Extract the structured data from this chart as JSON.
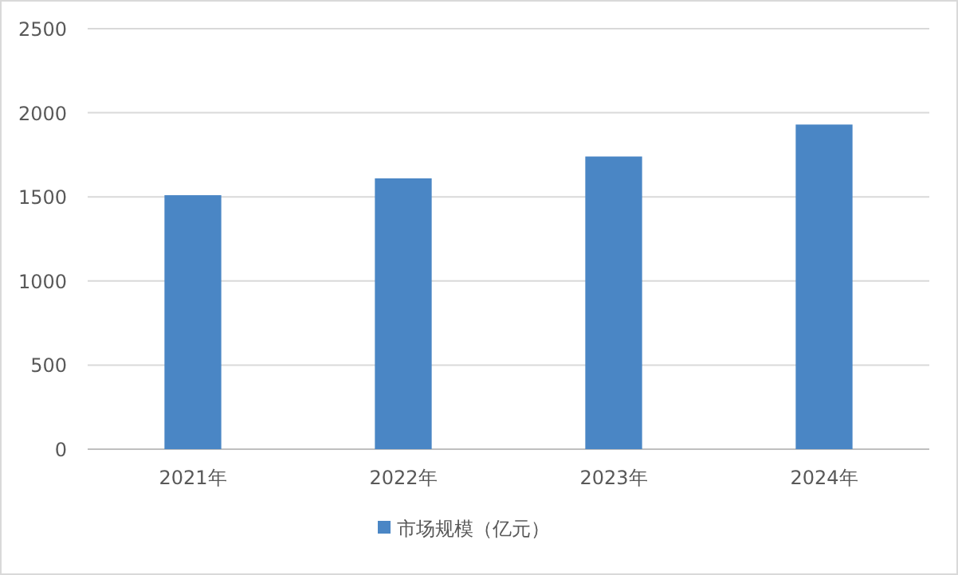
{
  "chart_data": {
    "type": "bar",
    "categories": [
      "2021年",
      "2022年",
      "2023年",
      "2024年"
    ],
    "series": [
      {
        "name": "市场规模（亿元）",
        "color": "#4a86c5",
        "values": [
          1510,
          1610,
          1740,
          1930
        ]
      }
    ],
    "ylim": [
      0,
      2500
    ],
    "yticks": [
      0,
      500,
      1000,
      1500,
      2000,
      2500
    ],
    "grid": "y",
    "legend": "bottom"
  }
}
